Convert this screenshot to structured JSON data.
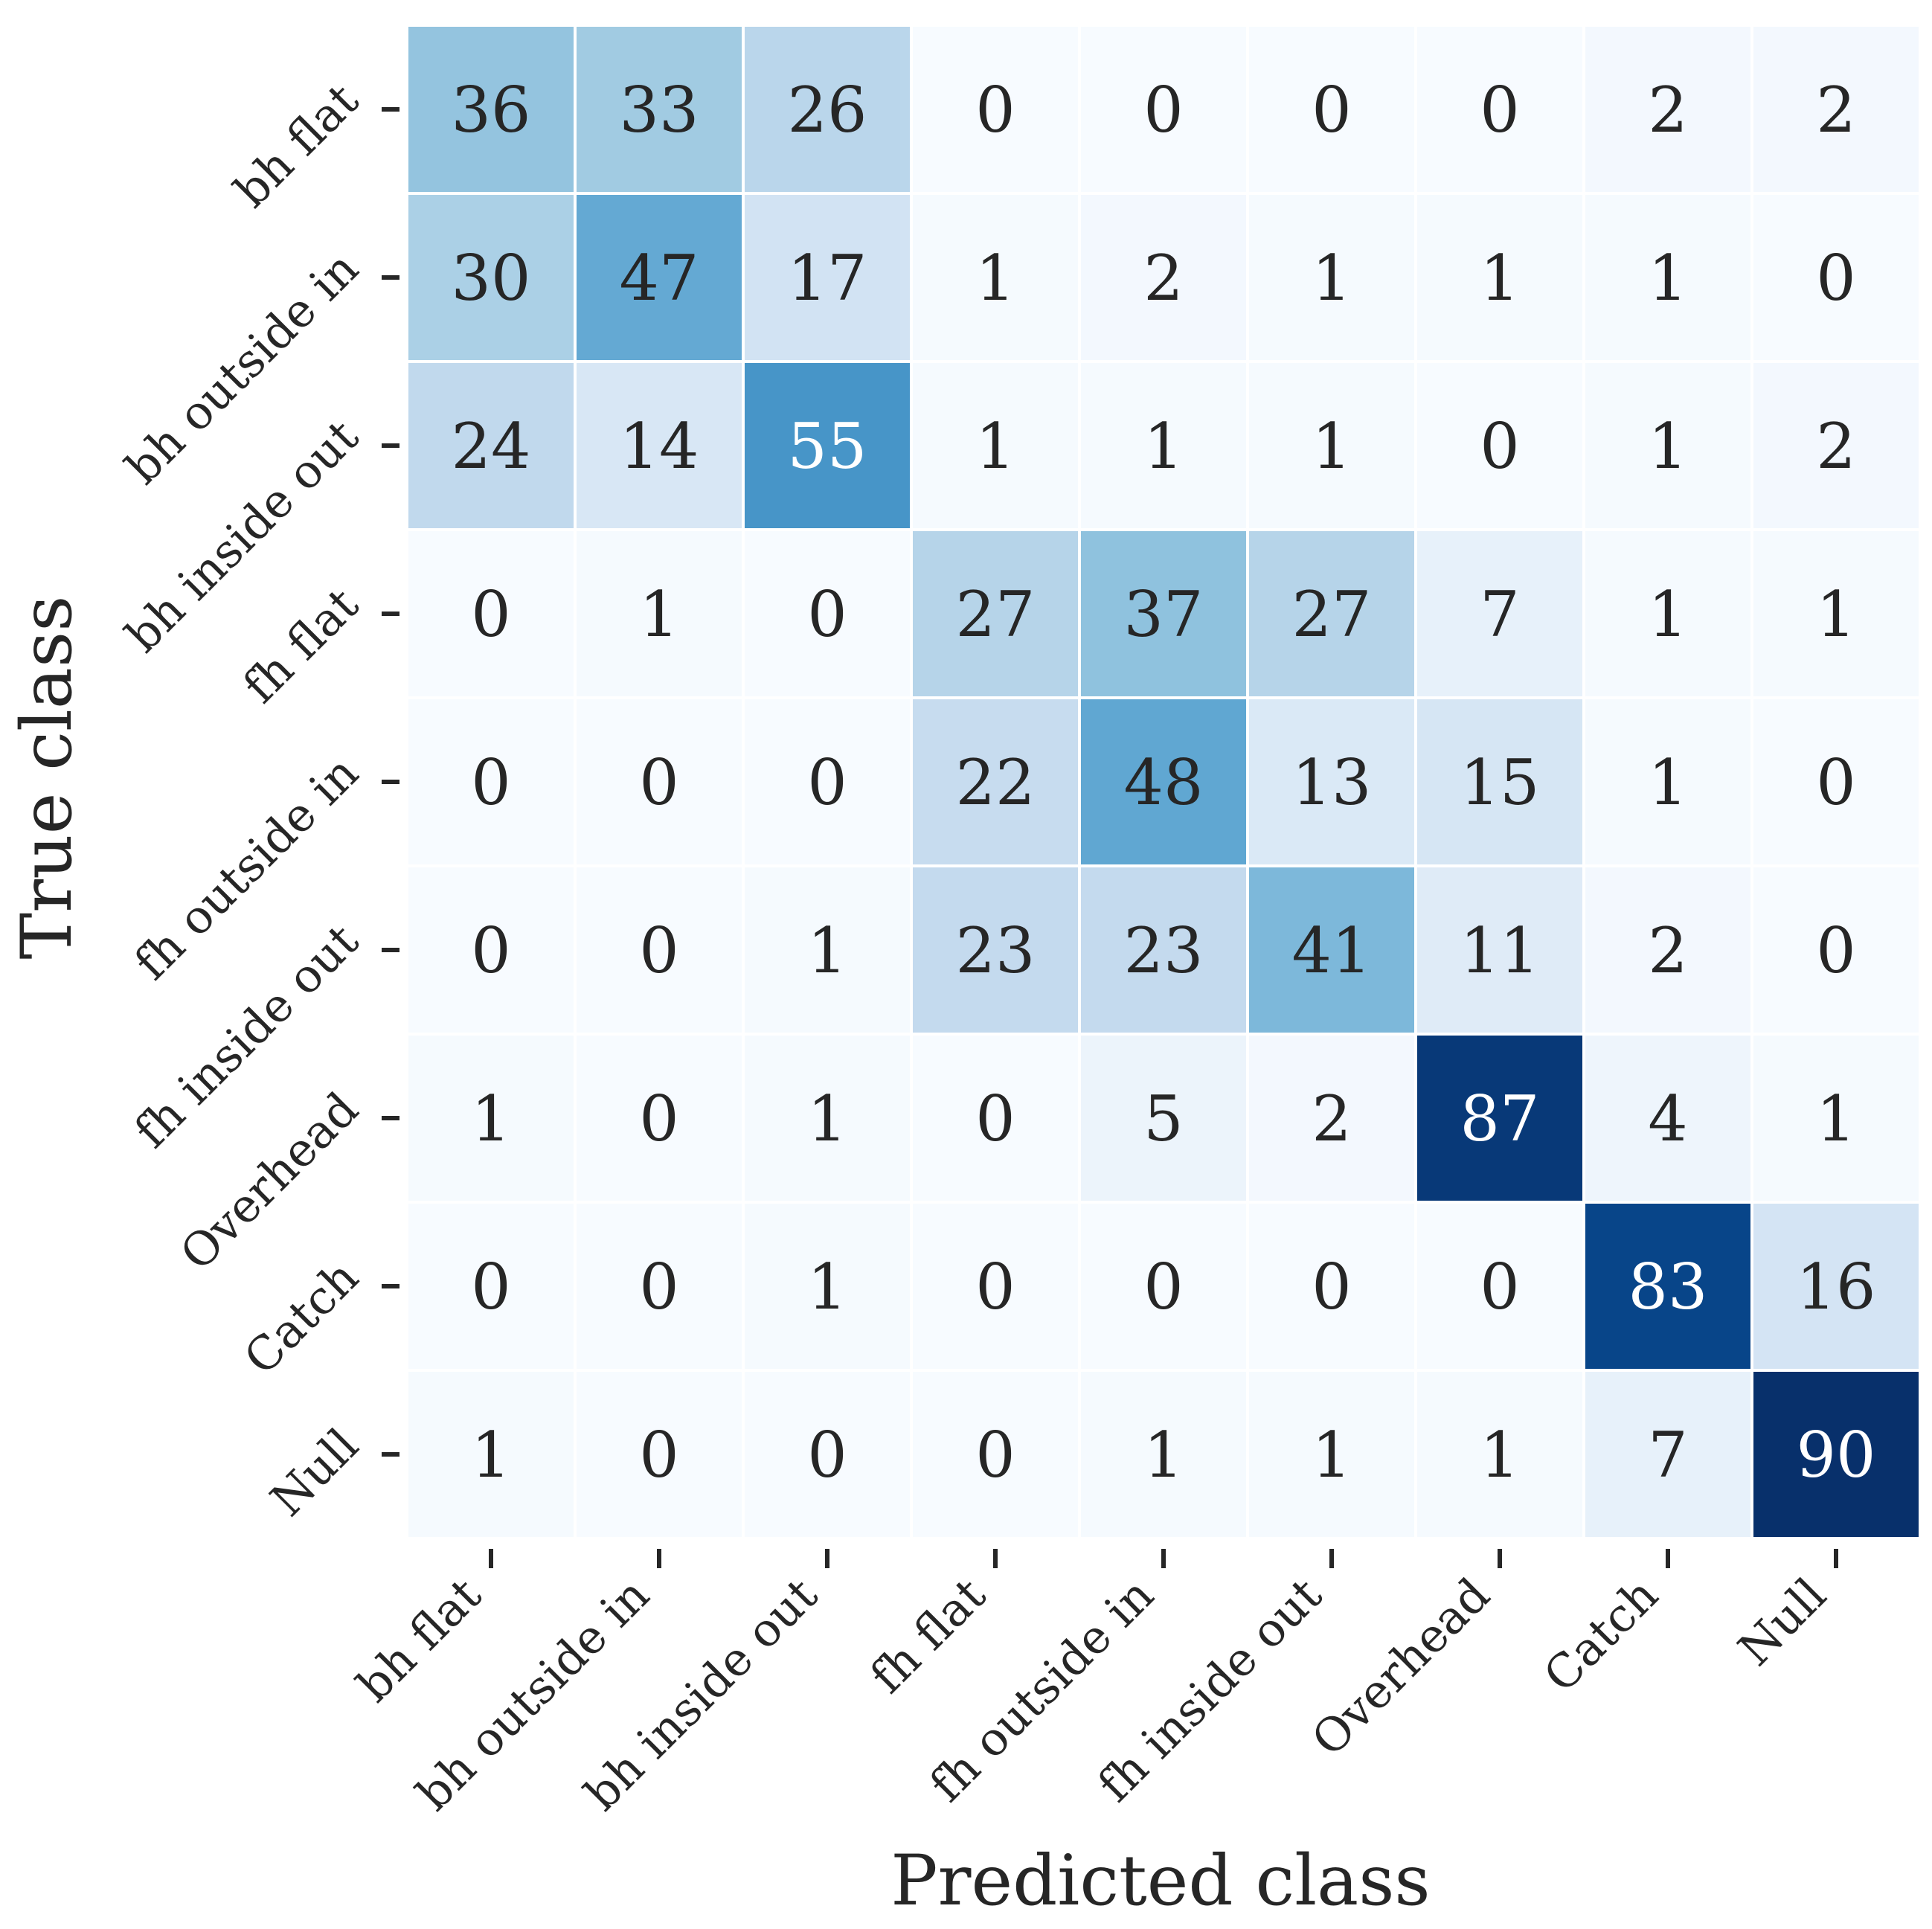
{
  "chart_data": {
    "type": "heatmap",
    "title": "",
    "xlabel": "Predicted class",
    "ylabel": "True class",
    "x_categories": [
      "bh flat",
      "bh outside in",
      "bh inside out",
      "fh flat",
      "fh outside in",
      "fh inside out",
      "Overhead",
      "Catch",
      "Null"
    ],
    "y_categories": [
      "bh flat",
      "bh outside in",
      "bh inside out",
      "fh flat",
      "fh outside in",
      "fh inside out",
      "Overhead",
      "Catch",
      "Null"
    ],
    "values": [
      [
        36,
        33,
        26,
        0,
        0,
        0,
        0,
        2,
        2
      ],
      [
        30,
        47,
        17,
        1,
        2,
        1,
        1,
        1,
        0
      ],
      [
        24,
        14,
        55,
        1,
        1,
        1,
        0,
        1,
        2
      ],
      [
        0,
        1,
        0,
        27,
        37,
        27,
        7,
        1,
        1
      ],
      [
        0,
        0,
        0,
        22,
        48,
        13,
        15,
        1,
        0
      ],
      [
        0,
        0,
        1,
        23,
        23,
        41,
        11,
        2,
        0
      ],
      [
        1,
        0,
        1,
        0,
        5,
        2,
        87,
        4,
        1
      ],
      [
        0,
        0,
        1,
        0,
        0,
        0,
        0,
        83,
        16
      ],
      [
        1,
        0,
        0,
        0,
        1,
        1,
        1,
        7,
        90
      ]
    ],
    "value_range": [
      0,
      90
    ],
    "colormap": "Blues",
    "colorbar": false,
    "grid": false
  },
  "colors": {
    "cell_border": "#ffffff",
    "text_dark": "#262626",
    "text_light": "#ffffff",
    "axis": "#262626"
  }
}
